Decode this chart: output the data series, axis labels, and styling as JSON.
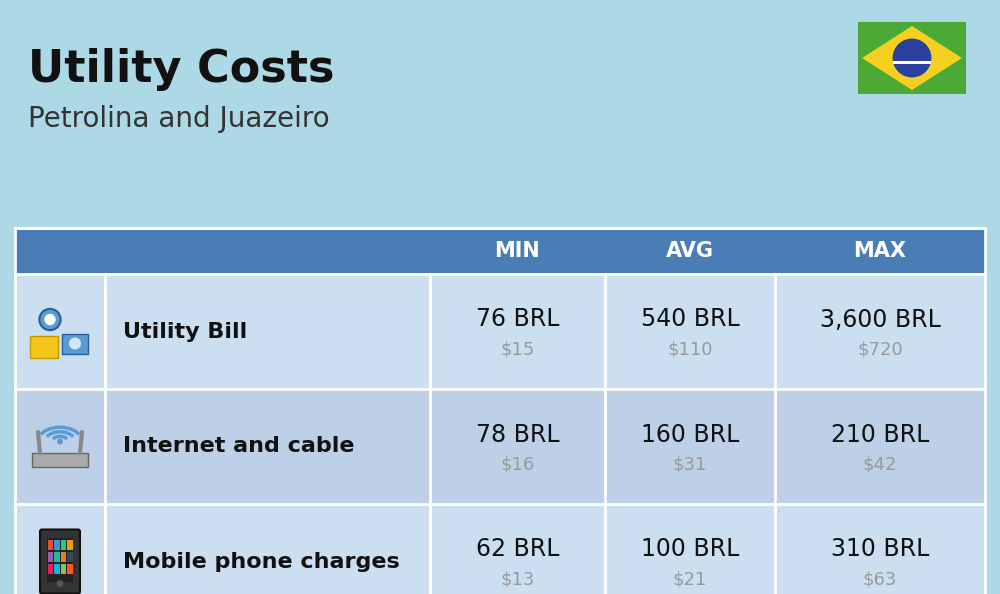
{
  "title": "Utility Costs",
  "subtitle": "Petrolina and Juazeiro",
  "background_color": "#add8e6",
  "header_bg_color": "#4a7db5",
  "header_text_color": "#ffffff",
  "row_bg_color_odd": "#ccdff0",
  "row_bg_color_even": "#bdd0e8",
  "col_headers": [
    "MIN",
    "AVG",
    "MAX"
  ],
  "rows": [
    {
      "label": "Utility Bill",
      "icon": "utility",
      "min_brl": "76 BRL",
      "min_usd": "$15",
      "avg_brl": "540 BRL",
      "avg_usd": "$110",
      "max_brl": "3,600 BRL",
      "max_usd": "$720"
    },
    {
      "label": "Internet and cable",
      "icon": "internet",
      "min_brl": "78 BRL",
      "min_usd": "$16",
      "avg_brl": "160 BRL",
      "avg_usd": "$31",
      "max_brl": "210 BRL",
      "max_usd": "$42"
    },
    {
      "label": "Mobile phone charges",
      "icon": "mobile",
      "min_brl": "62 BRL",
      "min_usd": "$13",
      "avg_brl": "100 BRL",
      "avg_usd": "$21",
      "max_brl": "310 BRL",
      "max_usd": "$63"
    }
  ],
  "brl_fontsize": 17,
  "usd_fontsize": 13,
  "usd_color": "#999999",
  "label_fontsize": 16,
  "title_fontsize": 32,
  "subtitle_fontsize": 20,
  "flag_green": "#4aaa35",
  "flag_yellow": "#f5d020",
  "flag_blue": "#2a3f9f",
  "flag_white": "#ffffff"
}
